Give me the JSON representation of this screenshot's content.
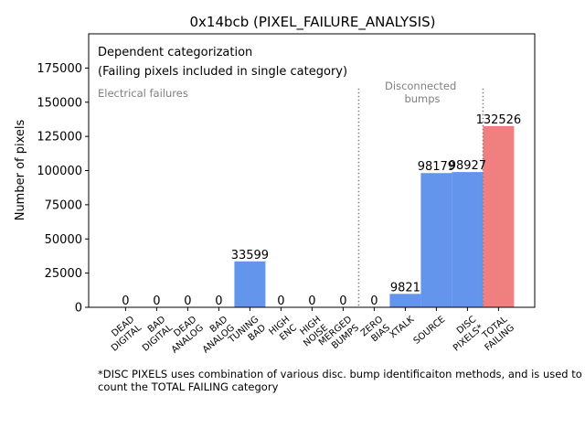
{
  "chart_data": {
    "type": "bar",
    "title": "0x14bcb (PIXEL_FAILURE_ANALYSIS)",
    "xlabel": "",
    "ylabel": "Number of pixels",
    "ylim": [
      0,
      200000
    ],
    "yticks": [
      0,
      25000,
      50000,
      75000,
      100000,
      125000,
      150000,
      175000
    ],
    "grid": false,
    "categories": [
      "DEAD\nDIGITAL",
      "BAD\nDIGITAL",
      "DEAD\nANALOG",
      "BAD\nANALOG",
      "TUNING\nBAD",
      "HIGH\nENC",
      "HIGH\nNOISE",
      "MERGED\nBUMPS",
      "ZERO\nBIAS",
      "XTALK",
      "SOURCE",
      "DISC\nPIXELS*",
      "TOTAL\nFAILING"
    ],
    "values": [
      0,
      0,
      0,
      0,
      33599,
      0,
      0,
      0,
      0,
      9821,
      98179,
      98927,
      132526
    ],
    "value_labels": [
      "0",
      "0",
      "0",
      "0",
      "33599",
      "0",
      "0",
      "0",
      "0",
      "9821",
      "98179",
      "98927",
      "132526"
    ],
    "bar_colors": [
      "#6495ed",
      "#6495ed",
      "#6495ed",
      "#6495ed",
      "#6495ed",
      "#6495ed",
      "#6495ed",
      "#6495ed",
      "#6495ed",
      "#6495ed",
      "#6495ed",
      "#6495ed",
      "#f08080"
    ],
    "annotations": {
      "box_line1": "Dependent categorization",
      "box_line2": "(Failing pixels included in single category)",
      "electrical": "Electrical failures",
      "disconnected": "Disconnected\nbumps"
    },
    "separators_after_index": [
      7,
      11
    ]
  },
  "footnote": "*DISC PIXELS uses combination of various disc. bump identificaiton methods, and is used to count the TOTAL FAILING category"
}
